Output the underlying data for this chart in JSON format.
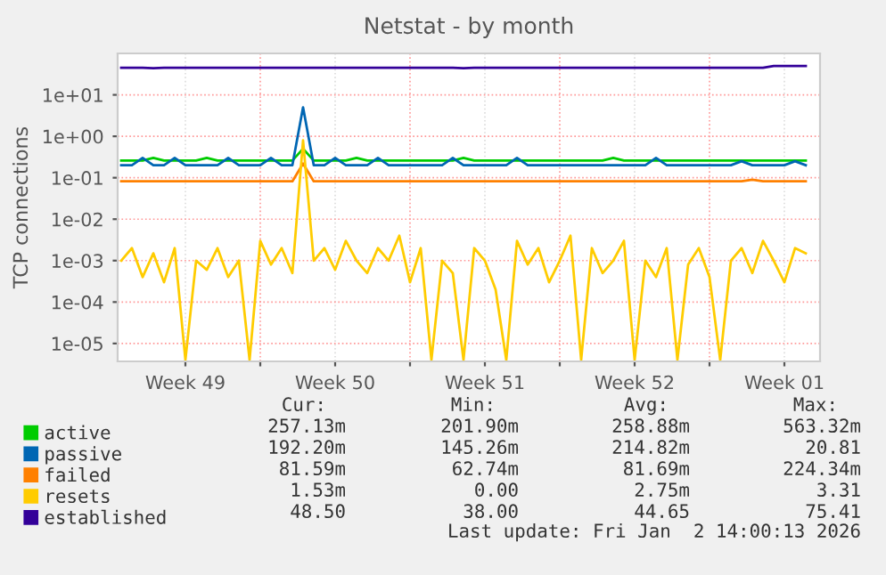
{
  "chart_data": {
    "type": "line",
    "title": "Netstat - by month",
    "ylabel": "TCP connections",
    "log": "y",
    "grid": true,
    "legend": "bottom left",
    "marker": "none",
    "line_style": "solid",
    "x": [
      "2025-12-01T12:00",
      "2025-12-02T00:00",
      "2025-12-02T12:00",
      "2025-12-03T00:00",
      "2025-12-03T12:00",
      "2025-12-04T00:00",
      "2025-12-04T12:00",
      "2025-12-05T00:00",
      "2025-12-05T12:00",
      "2025-12-06T00:00",
      "2025-12-06T12:00",
      "2025-12-07T00:00",
      "2025-12-07T12:00",
      "2025-12-08T00:00",
      "2025-12-08T12:00",
      "2025-12-09T00:00",
      "2025-12-09T12:00",
      "2025-12-10T00:00",
      "2025-12-10T12:00",
      "2025-12-11T00:00",
      "2025-12-11T12:00",
      "2025-12-12T00:00",
      "2025-12-12T12:00",
      "2025-12-13T00:00",
      "2025-12-13T12:00",
      "2025-12-14T00:00",
      "2025-12-14T12:00",
      "2025-12-15T00:00",
      "2025-12-15T12:00",
      "2025-12-16T00:00",
      "2025-12-16T12:00",
      "2025-12-17T00:00",
      "2025-12-17T12:00",
      "2025-12-18T00:00",
      "2025-12-18T12:00",
      "2025-12-19T00:00",
      "2025-12-19T12:00",
      "2025-12-20T00:00",
      "2025-12-20T12:00",
      "2025-12-21T00:00",
      "2025-12-21T12:00",
      "2025-12-22T00:00",
      "2025-12-22T12:00",
      "2025-12-23T00:00",
      "2025-12-23T12:00",
      "2025-12-24T00:00",
      "2025-12-24T12:00",
      "2025-12-25T00:00",
      "2025-12-25T12:00",
      "2025-12-26T00:00",
      "2025-12-26T12:00",
      "2025-12-27T00:00",
      "2025-12-27T12:00",
      "2025-12-28T00:00",
      "2025-12-28T12:00",
      "2025-12-29T00:00",
      "2025-12-29T12:00",
      "2025-12-30T00:00",
      "2025-12-30T12:00",
      "2025-12-31T00:00",
      "2025-12-31T12:00",
      "2026-01-01T00:00",
      "2026-01-01T12:00",
      "2026-01-02T00:00",
      "2026-01-02T12:00"
    ],
    "series": [
      {
        "name": "active",
        "color": "#00cc00",
        "values": [
          0.26,
          0.26,
          0.26,
          0.3,
          0.26,
          0.26,
          0.26,
          0.26,
          0.3,
          0.26,
          0.26,
          0.26,
          0.26,
          0.26,
          0.26,
          0.26,
          0.26,
          0.5,
          0.26,
          0.26,
          0.26,
          0.26,
          0.3,
          0.26,
          0.26,
          0.26,
          0.26,
          0.26,
          0.26,
          0.26,
          0.26,
          0.26,
          0.3,
          0.26,
          0.26,
          0.26,
          0.26,
          0.26,
          0.26,
          0.26,
          0.26,
          0.26,
          0.26,
          0.26,
          0.26,
          0.26,
          0.3,
          0.26,
          0.26,
          0.26,
          0.26,
          0.26,
          0.26,
          0.26,
          0.26,
          0.26,
          0.26,
          0.26,
          0.26,
          0.26,
          0.26,
          0.26,
          0.26,
          0.26,
          0.26
        ]
      },
      {
        "name": "passive",
        "color": "#0066b3",
        "values": [
          0.2,
          0.2,
          0.3,
          0.2,
          0.2,
          0.3,
          0.2,
          0.2,
          0.2,
          0.2,
          0.3,
          0.2,
          0.2,
          0.2,
          0.3,
          0.2,
          0.2,
          5,
          0.2,
          0.2,
          0.3,
          0.2,
          0.2,
          0.2,
          0.3,
          0.2,
          0.2,
          0.2,
          0.2,
          0.2,
          0.2,
          0.3,
          0.2,
          0.2,
          0.2,
          0.2,
          0.2,
          0.3,
          0.2,
          0.2,
          0.2,
          0.2,
          0.2,
          0.2,
          0.2,
          0.2,
          0.2,
          0.2,
          0.2,
          0.2,
          0.3,
          0.2,
          0.2,
          0.2,
          0.2,
          0.2,
          0.2,
          0.2,
          0.25,
          0.2,
          0.2,
          0.2,
          0.2,
          0.25,
          0.2
        ]
      },
      {
        "name": "failed",
        "color": "#ff8000",
        "values": [
          0.082,
          0.082,
          0.082,
          0.082,
          0.082,
          0.082,
          0.082,
          0.082,
          0.082,
          0.082,
          0.082,
          0.082,
          0.082,
          0.082,
          0.082,
          0.082,
          0.082,
          0.22,
          0.082,
          0.082,
          0.082,
          0.082,
          0.082,
          0.082,
          0.082,
          0.082,
          0.082,
          0.082,
          0.082,
          0.082,
          0.082,
          0.082,
          0.082,
          0.082,
          0.082,
          0.082,
          0.082,
          0.082,
          0.082,
          0.082,
          0.082,
          0.082,
          0.082,
          0.082,
          0.082,
          0.082,
          0.082,
          0.082,
          0.082,
          0.082,
          0.082,
          0.082,
          0.082,
          0.082,
          0.082,
          0.082,
          0.082,
          0.082,
          0.082,
          0.09,
          0.082,
          0.082,
          0.082,
          0.082,
          0.082
        ]
      },
      {
        "name": "resets",
        "color": "#ffcc00",
        "values": [
          0.001,
          0.002,
          0.0004,
          0.0015,
          0.0003,
          0.002,
          4e-06,
          0.001,
          0.0006,
          0.002,
          0.0004,
          0.001,
          4e-06,
          0.003,
          0.0008,
          0.002,
          0.0005,
          0.8,
          0.001,
          0.002,
          0.0006,
          0.003,
          0.001,
          0.0005,
          0.002,
          0.001,
          0.004,
          0.0003,
          0.002,
          4e-06,
          0.001,
          0.0005,
          4e-06,
          0.002,
          0.001,
          0.0002,
          4e-06,
          0.003,
          0.0008,
          0.002,
          0.0003,
          0.001,
          0.004,
          4e-06,
          0.002,
          0.0005,
          0.001,
          0.003,
          4e-06,
          0.001,
          0.0004,
          0.002,
          4e-06,
          0.0008,
          0.002,
          0.0004,
          4e-06,
          0.001,
          0.002,
          0.0005,
          0.003,
          0.001,
          0.0003,
          0.002,
          0.0015
        ]
      },
      {
        "name": "established",
        "color": "#330099",
        "values": [
          45,
          45,
          45,
          44,
          45,
          45,
          45,
          45,
          45,
          45,
          45,
          45,
          45,
          45,
          45,
          45,
          45,
          45,
          45,
          45,
          45,
          45,
          45,
          45,
          45,
          45,
          45,
          45,
          45,
          45,
          45,
          45,
          44,
          45,
          45,
          45,
          45,
          45,
          45,
          45,
          45,
          45,
          45,
          45,
          45,
          45,
          45,
          45,
          45,
          45,
          45,
          45,
          45,
          45,
          45,
          45,
          45,
          45,
          45,
          45,
          45,
          50,
          50,
          50,
          50
        ]
      }
    ],
    "xlim": [
      "2025-12-01T08:00",
      "2026-01-03T04:00"
    ],
    "xticks": [
      {
        "value": "2025-12-04T12:00",
        "label": "Week 49"
      },
      {
        "value": "2025-12-08T00:00",
        "label": null
      },
      {
        "value": "2025-12-11T12:00",
        "label": "Week 50"
      },
      {
        "value": "2025-12-15T00:00",
        "label": null
      },
      {
        "value": "2025-12-18T12:00",
        "label": "Week 51"
      },
      {
        "value": "2025-12-22T00:00",
        "label": null
      },
      {
        "value": "2025-12-25T12:00",
        "label": "Week 52"
      },
      {
        "value": "2025-12-29T00:00",
        "label": null
      },
      {
        "value": "2026-01-01T12:00",
        "label": "Week 01"
      }
    ],
    "ylim": [
      3.7e-06,
      100
    ],
    "yticks": [
      {
        "value": 1e-05,
        "label": "1e-05"
      },
      {
        "value": 0.0001,
        "label": "1e-04"
      },
      {
        "value": 0.001,
        "label": "1e-03"
      },
      {
        "value": 0.01,
        "label": "1e-02"
      },
      {
        "value": 0.1,
        "label": "1e-01"
      },
      {
        "value": 1,
        "label": "1e+00"
      },
      {
        "value": 10,
        "label": "1e+01"
      }
    ],
    "annotations": [
      "Cur:",
      "Min:",
      "Avg:",
      "Max:",
      "257.13m",
      "201.90m",
      "258.88m",
      "563.32m",
      "192.20m",
      "145.26m",
      "214.82m",
      "20.81",
      "81.59m",
      "62.74m",
      "81.69m",
      "224.34m",
      "1.53m",
      "0.00",
      "2.75m",
      "3.31",
      "48.50",
      "38.00",
      "44.65",
      "75.41",
      "Last update: Fri Jan  2 14:00:13 2026"
    ]
  }
}
